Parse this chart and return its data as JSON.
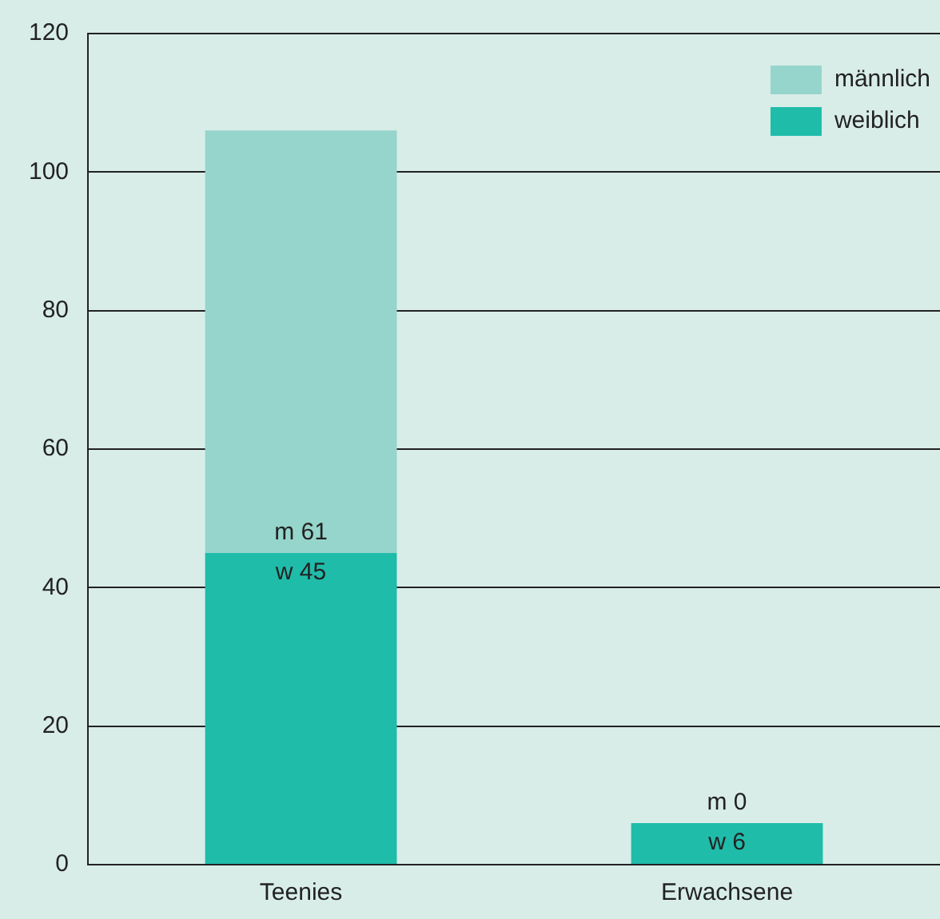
{
  "chart_data": {
    "type": "bar",
    "stacked": true,
    "categories": [
      "Teenies",
      "Erwachsene"
    ],
    "series": [
      {
        "name": "weiblich",
        "color": "#20bcaa",
        "values": [
          45,
          6
        ],
        "value_labels": [
          "w 45",
          "w 6"
        ]
      },
      {
        "name": "männlich",
        "color": "#96d5cb",
        "values": [
          61,
          0
        ],
        "value_labels": [
          "m 61",
          "m 0"
        ]
      }
    ],
    "ylim": [
      0,
      120
    ],
    "yticks": [
      0,
      20,
      40,
      60,
      80,
      100,
      120
    ],
    "grid": "y",
    "legend": "top right"
  }
}
